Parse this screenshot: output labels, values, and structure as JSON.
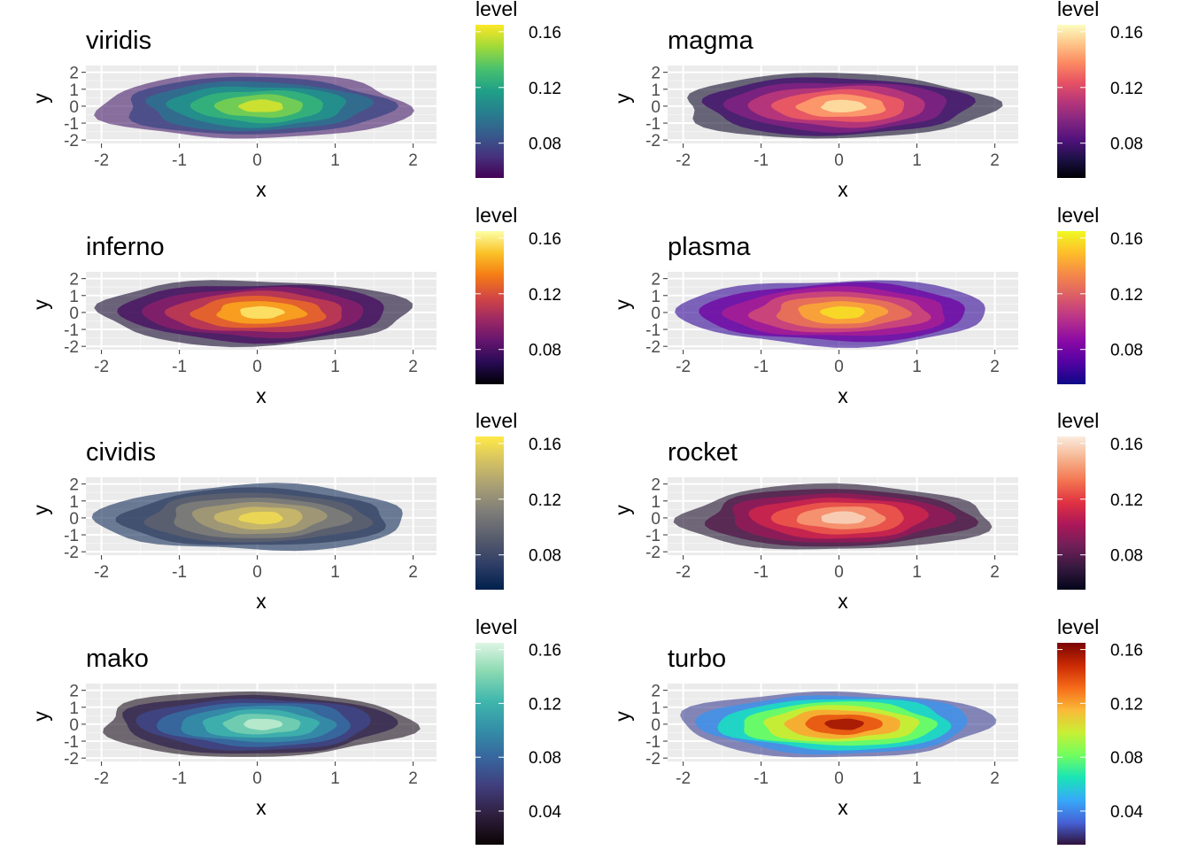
{
  "legend_title": "level",
  "chart_data": [
    {
      "type": "heatmap",
      "title": "viridis",
      "xlabel": "x",
      "ylabel": "y",
      "xlim": [
        -2.2,
        2.3
      ],
      "ylim": [
        -2.2,
        2.4
      ],
      "xticks": [
        "-2",
        "-1",
        "0",
        "1",
        "2"
      ],
      "yticks": [
        "-2",
        "-1",
        "0",
        "1",
        "2"
      ],
      "levels": [
        0.16,
        0.12,
        0.08
      ],
      "level_range": [
        0.055,
        0.165
      ],
      "bands": 7,
      "colors": [
        "#440154",
        "#46327e",
        "#365c8d",
        "#277f8e",
        "#1fa187",
        "#4ac16d",
        "#a0da39",
        "#fde725"
      ],
      "legend": "right",
      "grid": true
    },
    {
      "type": "heatmap",
      "title": "magma",
      "xlabel": "x",
      "ylabel": "y",
      "xlim": [
        -2.2,
        2.3
      ],
      "ylim": [
        -2.2,
        2.4
      ],
      "xticks": [
        "-2",
        "-1",
        "0",
        "1",
        "2"
      ],
      "yticks": [
        "-2",
        "-1",
        "0",
        "1",
        "2"
      ],
      "levels": [
        0.16,
        0.12,
        0.08
      ],
      "level_range": [
        0.055,
        0.165
      ],
      "bands": 7,
      "colors": [
        "#000004",
        "#1d1147",
        "#51127c",
        "#832681",
        "#b73779",
        "#e75263",
        "#fc8961",
        "#fec488",
        "#fcfdbf"
      ],
      "legend": "right",
      "grid": true
    },
    {
      "type": "heatmap",
      "title": "inferno",
      "xlabel": "x",
      "ylabel": "y",
      "xlim": [
        -2.2,
        2.3
      ],
      "ylim": [
        -2.2,
        2.4
      ],
      "xticks": [
        "-2",
        "-1",
        "0",
        "1",
        "2"
      ],
      "yticks": [
        "-2",
        "-1",
        "0",
        "1",
        "2"
      ],
      "levels": [
        0.16,
        0.12,
        0.08
      ],
      "level_range": [
        0.055,
        0.165
      ],
      "bands": 7,
      "colors": [
        "#000004",
        "#280b54",
        "#65156e",
        "#9f2a63",
        "#d44842",
        "#f57d15",
        "#fac228",
        "#fcffa4"
      ],
      "legend": "right",
      "grid": true
    },
    {
      "type": "heatmap",
      "title": "plasma",
      "xlabel": "x",
      "ylabel": "y",
      "xlim": [
        -2.2,
        2.3
      ],
      "ylim": [
        -2.2,
        2.4
      ],
      "xticks": [
        "-2",
        "-1",
        "0",
        "1",
        "2"
      ],
      "yticks": [
        "-2",
        "-1",
        "0",
        "1",
        "2"
      ],
      "levels": [
        0.16,
        0.12,
        0.08
      ],
      "level_range": [
        0.055,
        0.165
      ],
      "bands": 7,
      "colors": [
        "#0d0887",
        "#5302a3",
        "#8b0aa5",
        "#b83289",
        "#db5c68",
        "#f48849",
        "#febd2a",
        "#f0f921"
      ],
      "legend": "right",
      "grid": true
    },
    {
      "type": "heatmap",
      "title": "cividis",
      "xlabel": "x",
      "ylabel": "y",
      "xlim": [
        -2.2,
        2.3
      ],
      "ylim": [
        -2.2,
        2.4
      ],
      "xticks": [
        "-2",
        "-1",
        "0",
        "1",
        "2"
      ],
      "yticks": [
        "-2",
        "-1",
        "0",
        "1",
        "2"
      ],
      "levels": [
        0.16,
        0.12,
        0.08
      ],
      "level_range": [
        0.055,
        0.165
      ],
      "bands": 7,
      "colors": [
        "#00204d",
        "#2f3e66",
        "#575c6d",
        "#7c7b78",
        "#a69d75",
        "#d3c064",
        "#ffea46"
      ],
      "legend": "right",
      "grid": true
    },
    {
      "type": "heatmap",
      "title": "rocket",
      "xlabel": "x",
      "ylabel": "y",
      "xlim": [
        -2.2,
        2.3
      ],
      "ylim": [
        -2.2,
        2.4
      ],
      "xticks": [
        "-2",
        "-1",
        "0",
        "1",
        "2"
      ],
      "yticks": [
        "-2",
        "-1",
        "0",
        "1",
        "2"
      ],
      "levels": [
        0.16,
        0.12,
        0.08
      ],
      "level_range": [
        0.055,
        0.165
      ],
      "bands": 7,
      "colors": [
        "#03051a",
        "#35193e",
        "#701f57",
        "#ad1759",
        "#e13342",
        "#f37651",
        "#f6b48f",
        "#faebdd"
      ],
      "legend": "right",
      "grid": true
    },
    {
      "type": "heatmap",
      "title": "mako",
      "xlabel": "x",
      "ylabel": "y",
      "xlim": [
        -2.2,
        2.3
      ],
      "ylim": [
        -2.2,
        2.4
      ],
      "xticks": [
        "-2",
        "-1",
        "0",
        "1",
        "2"
      ],
      "yticks": [
        "-2",
        "-1",
        "0",
        "1",
        "2"
      ],
      "levels": [
        0.16,
        0.12,
        0.08,
        0.04
      ],
      "level_range": [
        0.015,
        0.165
      ],
      "bands": 8,
      "colors": [
        "#0b0405",
        "#2e1e3c",
        "#413d7b",
        "#37659e",
        "#348fa7",
        "#40b7ad",
        "#8ad9b1",
        "#def5e5"
      ],
      "legend": "right",
      "grid": true
    },
    {
      "type": "heatmap",
      "title": "turbo",
      "xlabel": "x",
      "ylabel": "y",
      "xlim": [
        -2.2,
        2.3
      ],
      "ylim": [
        -2.2,
        2.4
      ],
      "xticks": [
        "-2",
        "-1",
        "0",
        "1",
        "2"
      ],
      "yticks": [
        "-2",
        "-1",
        "0",
        "1",
        "2"
      ],
      "levels": [
        0.16,
        0.12,
        0.08,
        0.04
      ],
      "level_range": [
        0.015,
        0.165
      ],
      "bands": 8,
      "colors": [
        "#30123b",
        "#4662d7",
        "#36aaf9",
        "#1ae4b6",
        "#72fe5e",
        "#c8ef34",
        "#faba39",
        "#f66b19",
        "#ca2a04",
        "#7a0403"
      ],
      "legend": "right",
      "grid": true
    }
  ]
}
